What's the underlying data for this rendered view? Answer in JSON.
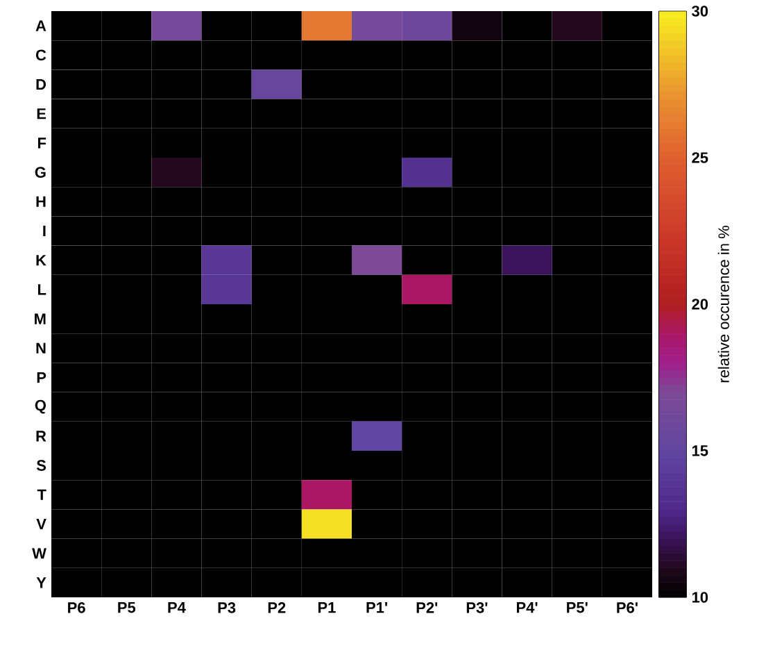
{
  "chart_data": {
    "type": "heatmap",
    "categories": [
      "P6",
      "P5",
      "P4",
      "P3",
      "P2",
      "P1",
      "P1'",
      "P2'",
      "P3'",
      "P4'",
      "P5'",
      "P6'"
    ],
    "y_categories": [
      "A",
      "C",
      "D",
      "E",
      "F",
      "G",
      "H",
      "I",
      "K",
      "L",
      "M",
      "N",
      "P",
      "Q",
      "R",
      "S",
      "T",
      "V",
      "W",
      "Y"
    ],
    "cells": [
      [
        10,
        10,
        16.5,
        10,
        10,
        26,
        16.5,
        16,
        10.5,
        10,
        11,
        10
      ],
      [
        10,
        10,
        10,
        10,
        10,
        10,
        10,
        10,
        10,
        10,
        10,
        10
      ],
      [
        10,
        10,
        10,
        10,
        15.5,
        10,
        10,
        10,
        10,
        10,
        10,
        10
      ],
      [
        10,
        10,
        10,
        10,
        10,
        10,
        10,
        10,
        10,
        10,
        10,
        10
      ],
      [
        10,
        10,
        10,
        10,
        10,
        10,
        10,
        10,
        10,
        10,
        10,
        10
      ],
      [
        10,
        10,
        11,
        10,
        10,
        10,
        10,
        13.5,
        10,
        10,
        10,
        10
      ],
      [
        10,
        10,
        10,
        10,
        10,
        10,
        10,
        10,
        10,
        10,
        10,
        10
      ],
      [
        10,
        10,
        10,
        10,
        10,
        10,
        10,
        10,
        10,
        10,
        10,
        10
      ],
      [
        10,
        10,
        10,
        14,
        10,
        10,
        17,
        10,
        10,
        12,
        10,
        10
      ],
      [
        10,
        10,
        10,
        14,
        10,
        10,
        10,
        19,
        10,
        10,
        10,
        10
      ],
      [
        10,
        10,
        10,
        10,
        10,
        10,
        10,
        10,
        10,
        10,
        10,
        10
      ],
      [
        10,
        10,
        10,
        10,
        10,
        10,
        10,
        10,
        10,
        10,
        10,
        10
      ],
      [
        10,
        10,
        10,
        10,
        10,
        10,
        10,
        10,
        10,
        10,
        10,
        10
      ],
      [
        10,
        10,
        10,
        10,
        10,
        10,
        10,
        10,
        10,
        10,
        10,
        10
      ],
      [
        10,
        10,
        10,
        10,
        10,
        10,
        15,
        10,
        10,
        10,
        10,
        10
      ],
      [
        10,
        10,
        10,
        10,
        10,
        10,
        10,
        10,
        10,
        10,
        10,
        10
      ],
      [
        10,
        10,
        10,
        10,
        10,
        19,
        10,
        10,
        10,
        10,
        10,
        10
      ],
      [
        10,
        10,
        10,
        10,
        10,
        29.5,
        10,
        10,
        10,
        10,
        10,
        10
      ],
      [
        10,
        10,
        10,
        10,
        10,
        10,
        10,
        10,
        10,
        10,
        10,
        10
      ],
      [
        10,
        10,
        10,
        10,
        10,
        10,
        10,
        10,
        10,
        10,
        10,
        10
      ]
    ],
    "clim": [
      10,
      30
    ],
    "cticks": [
      10,
      15,
      20,
      25,
      30
    ],
    "clabel": "relative occurence in %"
  }
}
